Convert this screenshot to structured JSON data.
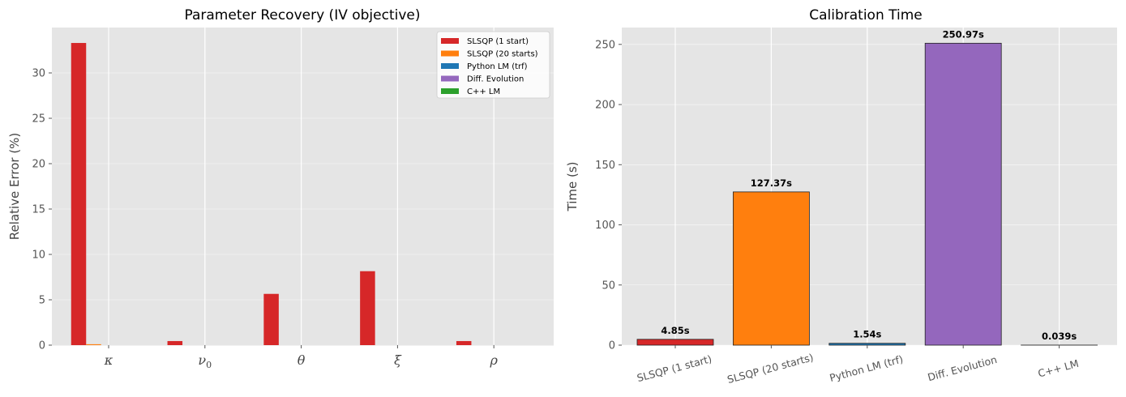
{
  "chart_data": [
    {
      "type": "bar",
      "title": "Parameter Recovery (IV objective)",
      "xlabel": "",
      "ylabel": "Relative Error (%)",
      "ylim": [
        0,
        35
      ],
      "yticks": [
        0,
        5,
        10,
        15,
        20,
        25,
        30
      ],
      "categories": [
        "κ",
        "ν",
        "θ",
        "ξ",
        "ρ"
      ],
      "category_subscripts": [
        "",
        "0",
        "",
        "",
        ""
      ],
      "legend_position": "top-right",
      "series": [
        {
          "name": "SLSQP (1 start)",
          "color": "#d62728",
          "values": [
            33.3,
            0.45,
            5.65,
            8.15,
            0.45
          ]
        },
        {
          "name": "SLSQP (20 starts)",
          "color": "#ff7f0e",
          "values": [
            0.1,
            0.0,
            0.0,
            0.0,
            0.0
          ]
        },
        {
          "name": "Python LM (trf)",
          "color": "#1f77b4",
          "values": [
            0.0,
            0.0,
            0.0,
            0.0,
            0.0
          ]
        },
        {
          "name": "Diff. Evolution",
          "color": "#9467bd",
          "values": [
            0.0,
            0.0,
            0.0,
            0.0,
            0.0
          ]
        },
        {
          "name": "C++ LM",
          "color": "#2ca02c",
          "values": [
            0.0,
            0.0,
            0.0,
            0.0,
            0.0
          ]
        }
      ]
    },
    {
      "type": "bar",
      "title": "Calibration Time",
      "xlabel": "",
      "ylabel": "Time (s)",
      "ylim": [
        0,
        264
      ],
      "yticks": [
        0,
        50,
        100,
        150,
        200,
        250
      ],
      "categories": [
        "SLSQP (1 start)",
        "SLSQP (20 starts)",
        "Python LM (trf)",
        "Diff. Evolution",
        "C++ LM"
      ],
      "colors": [
        "#d62728",
        "#ff7f0e",
        "#1f77b4",
        "#9467bd",
        "#2ca02c"
      ],
      "values": [
        4.85,
        127.37,
        1.54,
        250.97,
        0.039
      ],
      "data_labels": [
        "4.85s",
        "127.37s",
        "1.54s",
        "250.97s",
        "0.039s"
      ]
    }
  ]
}
